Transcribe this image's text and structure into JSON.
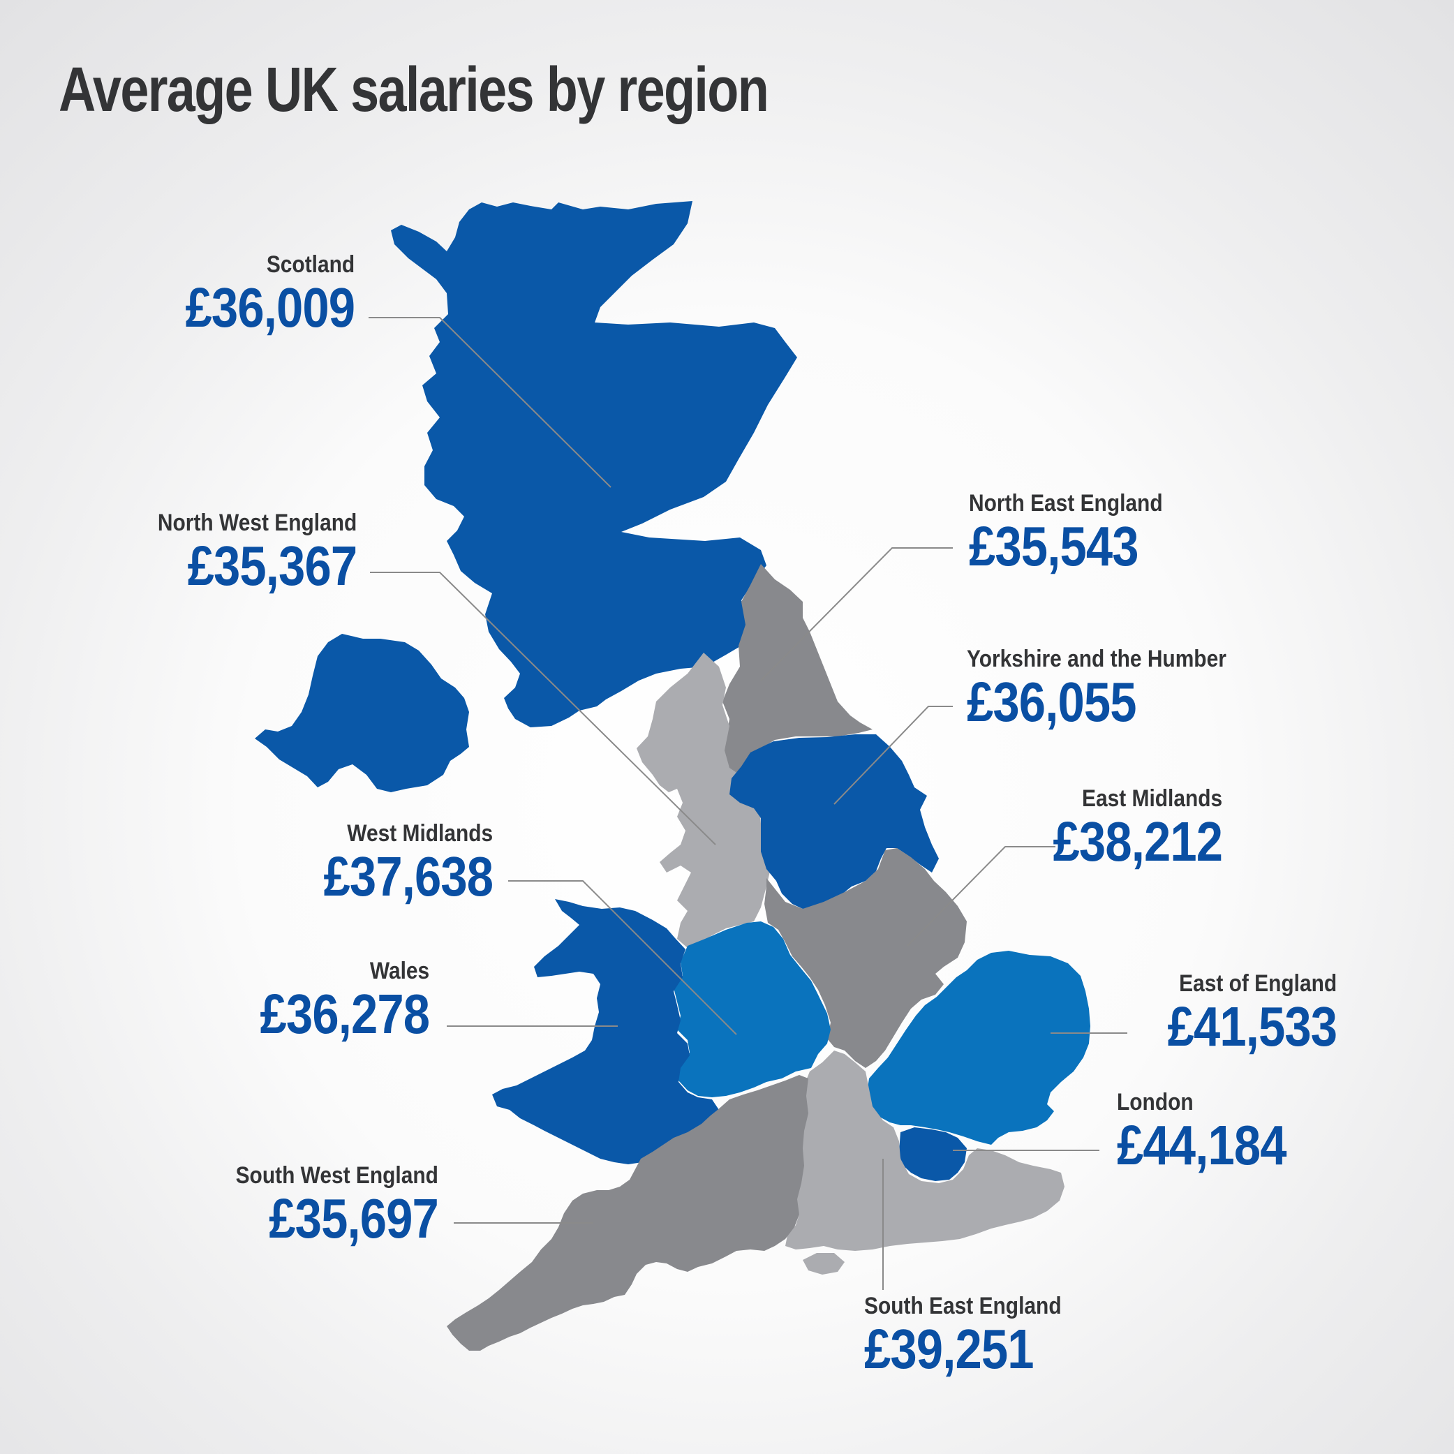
{
  "title": "Average UK salaries by region",
  "colors": {
    "dark_blue": "#0a58a8",
    "mid_blue": "#0a73bd",
    "dark_grey": "#88898d",
    "light_grey": "#abacb0",
    "label_value": "#0a4fa3",
    "label_name": "#333436",
    "leader": "#8a8a8a"
  },
  "regions": [
    {
      "id": "scotland",
      "name": "Scotland",
      "salary": "£36,009",
      "shade": "dark_blue"
    },
    {
      "id": "north-west-england",
      "name": "North West England",
      "salary": "£35,367",
      "shade": "light_grey"
    },
    {
      "id": "north-east-england",
      "name": "North East England",
      "salary": "£35,543",
      "shade": "dark_grey"
    },
    {
      "id": "yorkshire-and-the-humber",
      "name": "Yorkshire and the Humber",
      "salary": "£36,055",
      "shade": "dark_blue"
    },
    {
      "id": "east-midlands",
      "name": "East Midlands",
      "salary": "£38,212",
      "shade": "dark_grey"
    },
    {
      "id": "west-midlands",
      "name": "West Midlands",
      "salary": "£37,638",
      "shade": "mid_blue"
    },
    {
      "id": "wales",
      "name": "Wales",
      "salary": "£36,278",
      "shade": "dark_blue"
    },
    {
      "id": "east-of-england",
      "name": "East of England",
      "salary": "£41,533",
      "shade": "mid_blue"
    },
    {
      "id": "london",
      "name": "London",
      "salary": "£44,184",
      "shade": "dark_blue"
    },
    {
      "id": "south-west-england",
      "name": "South West England",
      "salary": "£35,697",
      "shade": "dark_grey"
    },
    {
      "id": "south-east-england",
      "name": "South East England",
      "salary": "£39,251",
      "shade": "light_grey"
    },
    {
      "id": "northern-ireland",
      "name": "",
      "salary": "",
      "shade": "dark_blue"
    }
  ]
}
